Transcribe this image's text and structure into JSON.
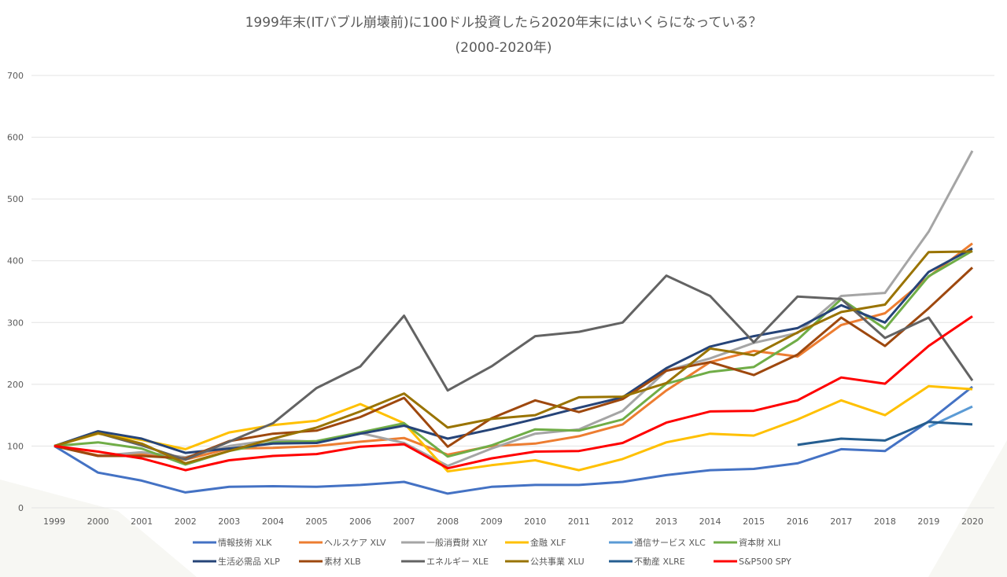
{
  "chart_data": {
    "type": "line",
    "title": "1999年末(ITバブル崩壊前)に100ドル投資したら2020年末にはいくらになっている？",
    "subtitle": "(2000-2020年)",
    "xlabel": "",
    "ylabel": "",
    "ylim": [
      0,
      700
    ],
    "yticks": [
      "0",
      "100",
      "200",
      "300",
      "400",
      "500",
      "600",
      "700"
    ],
    "x": [
      "1999",
      "2000",
      "2001",
      "2002",
      "2003",
      "2004",
      "2005",
      "2006",
      "2007",
      "2008",
      "2009",
      "2010",
      "2011",
      "2012",
      "2013",
      "2014",
      "2015",
      "2016",
      "2017",
      "2018",
      "2019",
      "2020"
    ],
    "grid": true,
    "legend_position": "bottom",
    "series": [
      {
        "name": "情報技術 XLK",
        "color": "#4472C4",
        "values": [
          100,
          57,
          44,
          25,
          34,
          35,
          34,
          37,
          42,
          23,
          34,
          37,
          37,
          42,
          53,
          61,
          63,
          72,
          95,
          92,
          140,
          196
        ]
      },
      {
        "name": "ヘルスケア XLV",
        "color": "#ED7D31",
        "values": [
          100,
          85,
          87,
          78,
          96,
          97,
          100,
          107,
          113,
          86,
          100,
          104,
          116,
          135,
          190,
          236,
          254,
          245,
          296,
          315,
          374,
          428
        ]
      },
      {
        "name": "一般消費財 XLY",
        "color": "#A5A5A5",
        "values": [
          100,
          84,
          90,
          82,
          100,
          110,
          107,
          121,
          105,
          68,
          96,
          120,
          127,
          157,
          222,
          242,
          267,
          283,
          343,
          348,
          447,
          578
        ]
      },
      {
        "name": "金融 XLF",
        "color": "#FFC000",
        "values": [
          100,
          120,
          110,
          95,
          122,
          134,
          141,
          168,
          137,
          59,
          69,
          77,
          61,
          79,
          106,
          120,
          117,
          143,
          174,
          150,
          197,
          192
        ]
      },
      {
        "name": "通信サービス XLC",
        "color": "#5B9BD5",
        "values": [
          null,
          null,
          null,
          null,
          null,
          null,
          null,
          null,
          null,
          null,
          null,
          null,
          null,
          null,
          null,
          null,
          null,
          null,
          null,
          null,
          131,
          164
        ]
      },
      {
        "name": "資本財 XLI",
        "color": "#70AD47",
        "values": [
          100,
          106,
          96,
          70,
          92,
          106,
          108,
          122,
          137,
          83,
          101,
          127,
          125,
          143,
          201,
          220,
          228,
          272,
          338,
          290,
          375,
          416
        ]
      },
      {
        "name": "生活必需品 XLP",
        "color": "#264478",
        "values": [
          100,
          124,
          112,
          89,
          96,
          104,
          105,
          120,
          133,
          112,
          127,
          144,
          162,
          179,
          226,
          261,
          278,
          291,
          328,
          300,
          382,
          420
        ]
      },
      {
        "name": "素材 XLB",
        "color": "#9E480E",
        "values": [
          100,
          84,
          84,
          80,
          108,
          120,
          125,
          147,
          178,
          99,
          145,
          174,
          155,
          176,
          222,
          236,
          215,
          248,
          308,
          262,
          323,
          389
        ]
      },
      {
        "name": "エネルギー XLE",
        "color": "#636363",
        "values": [
          100,
          121,
          101,
          78,
          107,
          137,
          194,
          229,
          311,
          190,
          229,
          278,
          285,
          300,
          376,
          343,
          268,
          342,
          338,
          275,
          308,
          206
        ]
      },
      {
        "name": "公共事業 XLU",
        "color": "#997300",
        "values": [
          100,
          121,
          104,
          72,
          92,
          112,
          130,
          156,
          185,
          130,
          144,
          150,
          179,
          180,
          202,
          258,
          247,
          284,
          317,
          329,
          414,
          415
        ]
      },
      {
        "name": "不動産 XLRE",
        "color": "#255E91",
        "values": [
          null,
          null,
          null,
          null,
          null,
          null,
          null,
          null,
          null,
          null,
          null,
          null,
          null,
          null,
          null,
          null,
          null,
          102,
          112,
          109,
          139,
          135
        ]
      },
      {
        "name": "S&P500 SPY",
        "color": "#FF0000",
        "values": [
          100,
          91,
          80,
          61,
          77,
          84,
          87,
          99,
          103,
          64,
          80,
          91,
          92,
          105,
          138,
          156,
          157,
          174,
          211,
          201,
          262,
          310
        ]
      }
    ]
  }
}
